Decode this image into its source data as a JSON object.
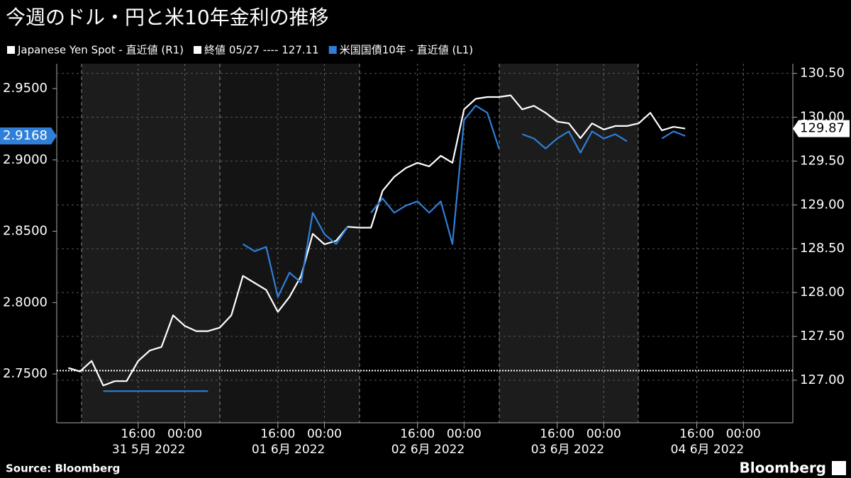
{
  "chart_data": {
    "type": "line",
    "title": "今週のドル・円と米10年金利の推移",
    "source": "Source:  Bloomberg",
    "brand": "Bloomberg",
    "x": [
      4,
      6,
      8,
      10,
      12,
      14,
      16,
      18,
      20,
      22,
      24,
      26,
      28,
      30,
      32,
      34,
      36,
      38,
      40,
      42,
      44,
      46,
      48,
      50,
      52,
      54,
      56,
      58,
      60,
      62,
      64,
      66,
      68,
      70,
      72,
      74,
      76,
      78,
      80,
      82,
      84,
      86,
      88,
      90,
      92,
      94,
      96,
      98,
      100,
      102,
      104,
      106,
      108,
      110
    ],
    "xlim": [
      2,
      128.5
    ],
    "xticks": [
      {
        "value": 16,
        "label": "16:00"
      },
      {
        "value": 24,
        "label": "00:00"
      },
      {
        "value": 40,
        "label": "16:00"
      },
      {
        "value": 48,
        "label": "00:00"
      },
      {
        "value": 64,
        "label": "16:00"
      },
      {
        "value": 72,
        "label": "00:00"
      },
      {
        "value": 88,
        "label": "16:00"
      },
      {
        "value": 96,
        "label": "00:00"
      },
      {
        "value": 112,
        "label": "16:00"
      },
      {
        "value": 120,
        "label": "00:00"
      }
    ],
    "x_groups": [
      "31 5月 2022",
      "01 6月 2022",
      "02 6月 2022",
      "03 6月 2022",
      "04 6月 2022"
    ],
    "ylim": [
      2.7158,
      2.9674
    ],
    "yticks": [
      {
        "value": 2.75,
        "label": "2.7500"
      },
      {
        "value": 2.8,
        "label": "2.8000"
      },
      {
        "value": 2.85,
        "label": "2.8500"
      },
      {
        "value": 2.9,
        "label": "2.9000"
      },
      {
        "value": 2.95,
        "label": "2.9500"
      }
    ],
    "y2lim": [
      126.515,
      130.61
    ],
    "y2ticks": [
      {
        "value": 127,
        "label": "127.00"
      },
      {
        "value": 127.5,
        "label": "127.50"
      },
      {
        "value": 128,
        "label": "128.00"
      },
      {
        "value": 128.5,
        "label": "128.50"
      },
      {
        "value": 129,
        "label": "129.00"
      },
      {
        "value": 129.5,
        "label": "129.50"
      },
      {
        "value": 130,
        "label": "130.00"
      },
      {
        "value": 130.5,
        "label": "130.50"
      }
    ],
    "reference": {
      "label": "終値 05/27 ---- 127.11",
      "value": 127.11,
      "axis": "y2",
      "color": "#ffffff"
    },
    "series": [
      {
        "name": "Japanese Yen Spot - 直近値 (R1)",
        "color": "#ffffff",
        "axis": "y2",
        "current_label": "129.87",
        "values": [
          127.14,
          127.1,
          127.22,
          126.94,
          126.99,
          126.99,
          127.22,
          127.34,
          127.38,
          127.74,
          127.62,
          127.56,
          127.56,
          127.6,
          127.74,
          128.19,
          128.11,
          128.03,
          127.78,
          127.95,
          128.19,
          128.67,
          128.55,
          128.59,
          128.75,
          128.74,
          128.74,
          129.16,
          129.32,
          129.42,
          129.48,
          129.44,
          129.56,
          129.48,
          130.09,
          130.21,
          130.23,
          130.23,
          130.25,
          130.09,
          130.13,
          130.05,
          129.95,
          129.93,
          129.76,
          129.93,
          129.86,
          129.9,
          129.9,
          129.93,
          130.05,
          129.85,
          129.89,
          129.87
        ]
      },
      {
        "name": "米国国債10年 - 直近値 (L1)",
        "color": "#2f7fd8",
        "axis": "y",
        "current_label": "2.9168",
        "values": [
          null,
          null,
          null,
          2.738,
          2.738,
          2.738,
          2.738,
          2.738,
          2.738,
          2.738,
          2.738,
          2.738,
          2.738,
          null,
          null,
          2.841,
          2.836,
          2.839,
          2.804,
          2.821,
          2.814,
          2.863,
          2.848,
          2.841,
          2.853,
          null,
          2.863,
          2.873,
          2.863,
          2.868,
          2.871,
          2.863,
          2.871,
          2.841,
          2.928,
          2.938,
          2.933,
          2.908,
          null,
          2.918,
          2.915,
          2.908,
          2.915,
          2.92,
          2.905,
          2.92,
          2.915,
          2.918,
          2.913,
          null,
          null,
          2.915,
          2.92,
          2.9168
        ]
      }
    ]
  }
}
